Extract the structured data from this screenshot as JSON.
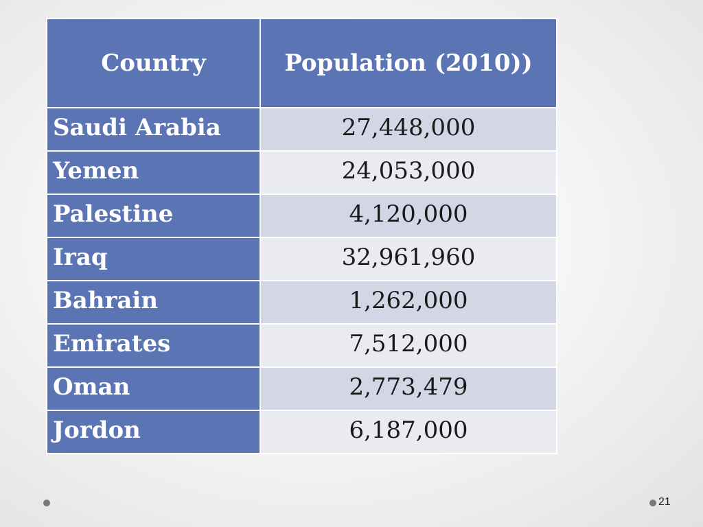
{
  "table": {
    "headers": [
      "Country",
      "Population (2010))"
    ],
    "rows": [
      {
        "country": "Saudi Arabia",
        "population": "27,448,000"
      },
      {
        "country": "Yemen",
        "population": "24,053,000"
      },
      {
        "country": "Palestine",
        "population": "4,120,000"
      },
      {
        "country": "Iraq",
        "population": "32,961,960"
      },
      {
        "country": "Bahrain",
        "population": "1,262,000"
      },
      {
        "country": "Emirates",
        "population": "7,512,000"
      },
      {
        "country": "Oman",
        "population": "2,773,479"
      },
      {
        "country": "Jordon",
        "population": "6,187,000"
      }
    ]
  },
  "footer": {
    "page_number": "21"
  },
  "colors": {
    "header": "#5b74b4",
    "row_band_1": "#d3d6e4",
    "row_band_2": "#eaebf1"
  }
}
